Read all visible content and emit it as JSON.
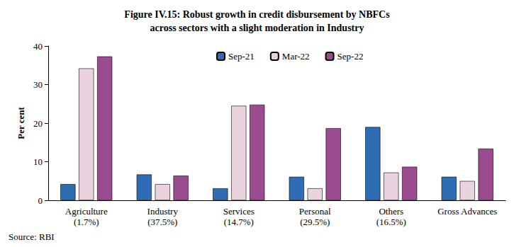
{
  "chart_data": {
    "type": "bar",
    "title": "Figure IV.15: Robust growth in credit disbursement by NBFCs\nacross sectors with a slight moderation in Industry",
    "ylabel": "Per cent",
    "source": "Source: RBI",
    "categories": [
      "Agriculture\n(1.7%)",
      "Industry\n(37.5%)",
      "Services\n(14.7%)",
      "Personal\n(29.5%)",
      "Others\n(16.5%)",
      "Gross Advances"
    ],
    "series": [
      {
        "name": "Sep-21",
        "color": "#2e6db4",
        "values": [
          4.2,
          6.7,
          3.1,
          6.1,
          19.0,
          6.1
        ]
      },
      {
        "name": "Mar-22",
        "color": "#ead3df",
        "values": [
          34.2,
          4.2,
          24.5,
          3.1,
          7.2,
          5.0
        ]
      },
      {
        "name": "Sep-22",
        "color": "#9b4b8f",
        "values": [
          37.3,
          6.4,
          24.8,
          18.7,
          8.7,
          13.4
        ]
      }
    ],
    "ylim": [
      0,
      40
    ],
    "yticks": [
      0,
      10,
      20,
      30,
      40
    ],
    "grid": false,
    "legend": "top"
  }
}
